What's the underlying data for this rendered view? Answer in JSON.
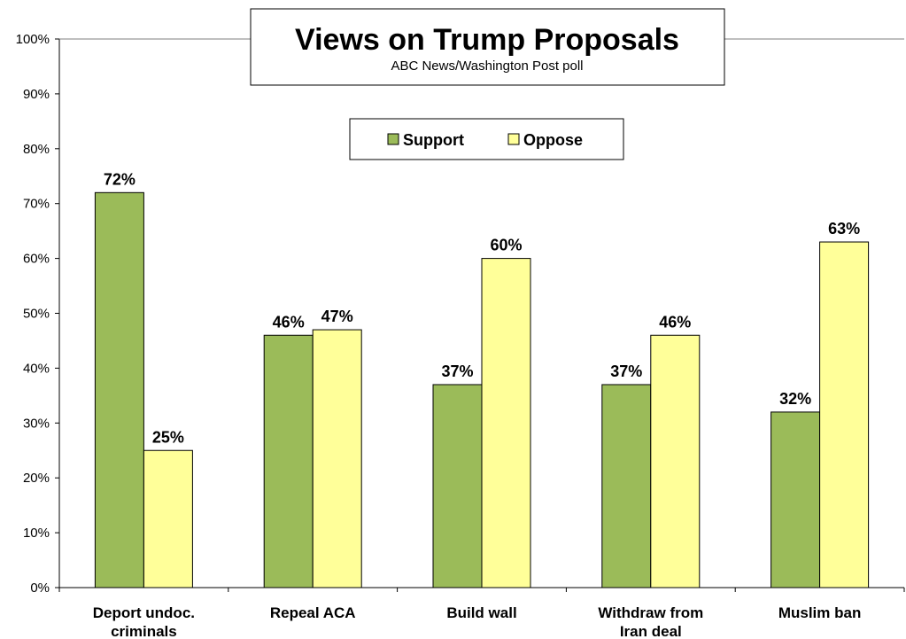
{
  "chart_data": {
    "type": "bar",
    "title": "Views on Trump Proposals",
    "subtitle": "ABC News/Washington  Post poll",
    "categories": [
      [
        "Deport undoc.",
        "criminals"
      ],
      [
        "Repeal ACA"
      ],
      [
        "Build wall"
      ],
      [
        "Withdraw from",
        "Iran deal"
      ],
      [
        "Muslim ban"
      ]
    ],
    "series": [
      {
        "name": "Support",
        "color": "#9BBB59",
        "values": [
          72,
          46,
          37,
          37,
          32
        ],
        "labels": [
          "72%",
          "46%",
          "37%",
          "37%",
          "32%"
        ]
      },
      {
        "name": "Oppose",
        "color": "#FFFF99",
        "values": [
          25,
          47,
          60,
          46,
          63
        ],
        "labels": [
          "25%",
          "47%",
          "60%",
          "46%",
          "63%"
        ]
      }
    ],
    "ylim": [
      0,
      100
    ],
    "yticks": [
      "0%",
      "10%",
      "20%",
      "30%",
      "40%",
      "50%",
      "60%",
      "70%",
      "80%",
      "90%",
      "100%"
    ],
    "legend_position": "top-center",
    "grid": false
  }
}
